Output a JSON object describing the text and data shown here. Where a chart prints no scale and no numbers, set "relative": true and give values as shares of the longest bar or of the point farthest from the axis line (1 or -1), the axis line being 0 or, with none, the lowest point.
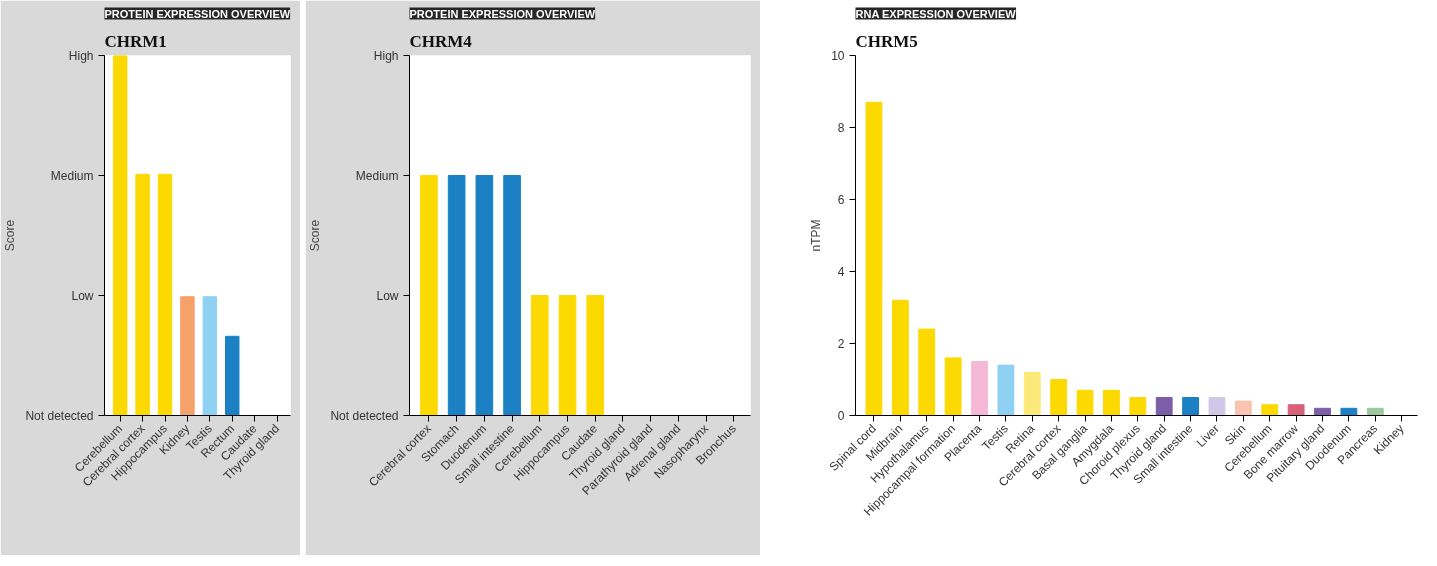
{
  "chart_data": [
    {
      "type": "bar",
      "title": "PROTEIN EXPRESSION OVERVIEW",
      "subtitle": "CHRM1",
      "ylabel": "Score",
      "relative": true,
      "categories": [
        "Cerebellum",
        "Cerebral cortex",
        "Hippocampus",
        "Kidney",
        "Testis",
        "Rectum",
        "Caudate",
        "Thyroid gland"
      ],
      "values": [
        1,
        0.67,
        0.67,
        0.33,
        0.33,
        0.22,
        0,
        0
      ],
      "ylim": [
        0,
        1
      ],
      "colors": [
        "#fcd900",
        "#fcd900",
        "#fcd900",
        "#f6a06a",
        "#8fd1f2",
        "#1b80c4",
        "#fcd900",
        "#fcd900"
      ],
      "annotations": [
        "Not detected",
        "Low",
        "Medium",
        "High"
      ]
    },
    {
      "type": "bar",
      "title": "PROTEIN EXPRESSION OVERVIEW",
      "subtitle": "CHRM4",
      "ylabel": "Score",
      "relative": true,
      "categories": [
        "Cerebral cortex",
        "Stomach",
        "Duodenum",
        "Small intestine",
        "Cerebellum",
        "Hippocampus",
        "Caudate",
        "Thyroid gland",
        "Parathyroid gland",
        "Adrenal gland",
        "Nasopharynx",
        "Bronchus"
      ],
      "values": [
        1,
        1,
        1,
        1,
        0.5,
        0.5,
        0.5,
        0,
        0,
        0,
        0,
        0
      ],
      "ylim": [
        0,
        1.5
      ],
      "colors": [
        "#fcd900",
        "#1b80c4",
        "#1b80c4",
        "#1b80c4",
        "#fcd900",
        "#fcd900",
        "#fcd900",
        "#fcd900",
        "#fcd900",
        "#fcd900",
        "#fcd900",
        "#fcd900"
      ],
      "annotations": [
        "Not detected",
        "Low",
        "Medium",
        "High"
      ]
    },
    {
      "type": "bar",
      "title": "RNA EXPRESSION OVERVIEW",
      "subtitle": "CHRM5",
      "ylabel": "nTPM",
      "categories": [
        "Spinal cord",
        "Midbrain",
        "Hypothalamus",
        "Hippocampal formation",
        "Placenta",
        "Testis",
        "Retina",
        "Cerebral cortex",
        "Basal ganglia",
        "Amygdala",
        "Choroid plexus",
        "Thyroid gland",
        "Small intestine",
        "Liver",
        "Skin",
        "Cerebellum",
        "Bone marrow",
        "Pituitary gland",
        "Duodenum",
        "Pancreas",
        "Kidney"
      ],
      "values": [
        8.7,
        3.2,
        2.4,
        1.6,
        1.5,
        1.4,
        1.2,
        1.0,
        0.7,
        0.7,
        0.5,
        0.5,
        0.5,
        0.5,
        0.4,
        0.3,
        0.3,
        0.2,
        0.2,
        0.2,
        null
      ],
      "colors": [
        "#fcd900",
        "#fcd900",
        "#fcd900",
        "#fcd900",
        "#f5b8d6",
        "#8fd1f2",
        "#fde97a",
        "#fcd900",
        "#fcd900",
        "#fcd900",
        "#fcd900",
        "#7b5ea7",
        "#1b80c4",
        "#d0c8e8",
        "#f9c4b0",
        "#fcd900",
        "#d9607a",
        "#7b5ea7",
        "#1b80c4",
        "#9cc89c",
        "#9cc89c"
      ],
      "ylim": [
        0,
        10
      ],
      "yticks": [
        0,
        2,
        4,
        6,
        8,
        10
      ]
    }
  ]
}
